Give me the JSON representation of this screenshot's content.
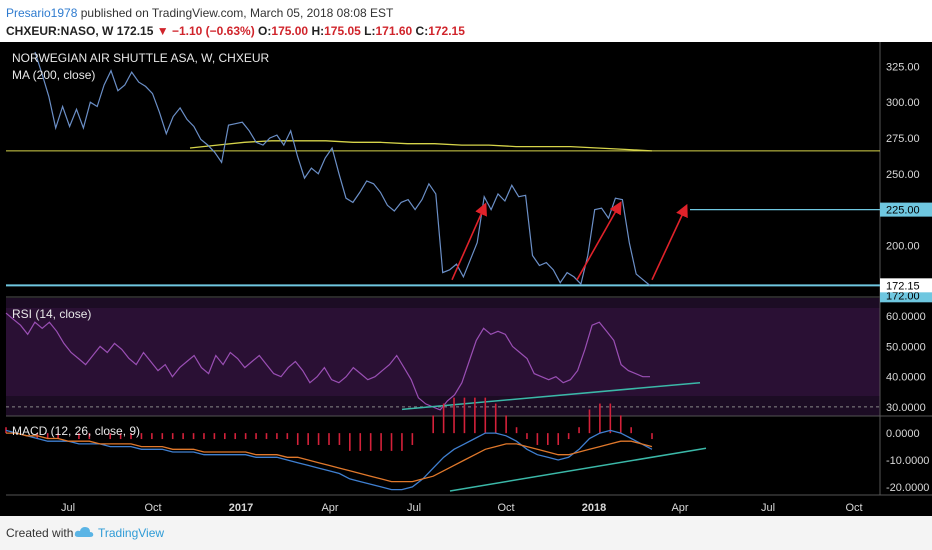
{
  "header": {
    "user": "Presario1978",
    "published": " published on TradingView.com, March 05, 2018 08:08 EST",
    "symbol": "CHXEUR:NASO, W",
    "last": "172.15",
    "change": "−1.10 (−0.63%)",
    "o_label": "O:",
    "o_val": "175.00",
    "h_label": "H:",
    "h_val": "175.05",
    "l_label": "L:",
    "l_val": "171.60",
    "c_label": "C:",
    "c_val": "172.15"
  },
  "footer": {
    "created": "Created with",
    "brand": "TradingView"
  },
  "colors": {
    "price": "#6b8fc7",
    "ma": "#d6d44a",
    "rsi": "#9a4fb4",
    "macd": "#3f7fd0",
    "signal": "#e0782b",
    "hist": "#d4213a",
    "trend": "#3bb8a8",
    "arrow": "#e0222a",
    "level": "#6fc7e0"
  },
  "chart_data": [
    {
      "type": "line",
      "pane": "price",
      "title": "NORWEGIAN AIR SHUTTLE ASA, W, CHXEUR",
      "indicator_label": "MA (200, close)",
      "x_ticks": [
        "Jul",
        "Oct",
        "2017",
        "Apr",
        "Jul",
        "Oct",
        "2018",
        "Apr",
        "Jul",
        "Oct"
      ],
      "ylim": [
        164,
        342
      ],
      "y_ticks": [
        "325.00",
        "300.00",
        "275.00",
        "250.00",
        "225.00",
        "200.00"
      ],
      "last_price_label": "172.15",
      "level_labels": [
        "225.00",
        "172.00"
      ],
      "horizontal_levels": [
        225,
        172.15,
        266
      ],
      "series": [
        {
          "values": [
            335,
            320,
            304,
            282,
            297,
            283,
            295,
            282,
            300,
            297,
            312,
            322,
            308,
            312,
            321,
            314,
            311,
            306,
            293,
            278,
            290,
            296,
            288,
            283,
            274,
            270,
            265,
            258,
            284,
            285,
            286,
            280,
            272,
            270,
            275,
            277,
            270,
            280,
            262,
            247,
            254,
            250,
            261,
            268,
            250,
            233,
            230,
            237,
            245,
            243,
            237,
            228,
            224,
            230,
            232,
            225,
            232,
            243,
            236,
            181,
            183,
            187,
            178,
            190,
            202,
            234,
            225,
            236,
            231,
            242,
            234,
            235,
            193,
            186,
            188,
            183,
            174,
            181,
            178,
            173,
            193,
            225,
            226,
            219,
            233,
            232,
            202,
            180,
            176,
            172
          ]
        },
        {
          "values": [
            268,
            270,
            272,
            273,
            273,
            273,
            272,
            272,
            271,
            271,
            270,
            270,
            269,
            269,
            269,
            268,
            267,
            266
          ]
        }
      ]
    },
    {
      "type": "line",
      "pane": "rsi",
      "indicator_label": "RSI (14, close)",
      "ylim": [
        27,
        66
      ],
      "y_ticks": [
        "60.0000",
        "50.0000",
        "40.0000",
        "30.0000"
      ],
      "dashed_level": 30,
      "series": [
        {
          "values": [
            61,
            59,
            57,
            54,
            58,
            56,
            58,
            55,
            51,
            48,
            46,
            44,
            47,
            50,
            48,
            51,
            49,
            46,
            44,
            48,
            45,
            42,
            44,
            40,
            43,
            45,
            47,
            43,
            41,
            47,
            44,
            48,
            46,
            43,
            45,
            47,
            44,
            41,
            40,
            43,
            45,
            42,
            38,
            40,
            43,
            39,
            38,
            40,
            43,
            41,
            39,
            40,
            42,
            44,
            47,
            43,
            39,
            33,
            31,
            30,
            29,
            32,
            34,
            38,
            45,
            52,
            56,
            54,
            55,
            54,
            50,
            48,
            46,
            41,
            40,
            39,
            40,
            38,
            39,
            42,
            49,
            57,
            58,
            55,
            52,
            44,
            42,
            41,
            40,
            40
          ]
        }
      ]
    },
    {
      "type": "line",
      "pane": "macd",
      "indicator_label": "MACD (12, 26, close, 9)",
      "ylim": [
        -23,
        6
      ],
      "y_ticks": [
        "0.0000",
        "-10.0000",
        "-20.0000"
      ],
      "series": [
        {
          "values": [
            1,
            0,
            -1,
            -2,
            -3,
            -3,
            -3,
            -4,
            -4,
            -4,
            -5,
            -5,
            -5,
            -6,
            -6,
            -6,
            -7,
            -7,
            -7,
            -8,
            -8,
            -8,
            -8,
            -8,
            -9,
            -9,
            -9,
            -10,
            -11,
            -12,
            -13,
            -14,
            -15,
            -17,
            -18,
            -19,
            -20,
            -21,
            -21,
            -20,
            -17,
            -13,
            -9,
            -6,
            -4,
            -2,
            0,
            0,
            -1,
            -3,
            -6,
            -8,
            -9,
            -10,
            -9,
            -6,
            -2,
            0,
            1,
            0,
            -2,
            -4,
            -6
          ]
        },
        {
          "values": [
            0,
            0,
            -1,
            -1,
            -2,
            -2,
            -3,
            -3,
            -3,
            -4,
            -4,
            -4,
            -4,
            -5,
            -5,
            -5,
            -6,
            -6,
            -6,
            -7,
            -7,
            -7,
            -7,
            -7,
            -8,
            -8,
            -8,
            -9,
            -9,
            -10,
            -11,
            -12,
            -13,
            -14,
            -15,
            -16,
            -17,
            -18,
            -18,
            -18,
            -17,
            -16,
            -14,
            -12,
            -10,
            -8,
            -6,
            -5,
            -4,
            -4,
            -5,
            -6,
            -7,
            -8,
            -8,
            -7,
            -6,
            -5,
            -4,
            -3,
            -3,
            -4,
            -5
          ]
        }
      ]
    }
  ]
}
